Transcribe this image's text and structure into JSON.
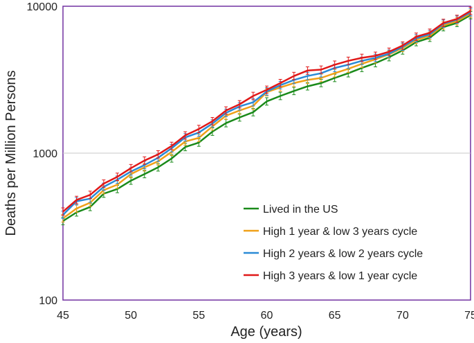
{
  "chart_data": {
    "type": "line",
    "title": "",
    "xlabel": "Age (years)",
    "ylabel": "Deaths per Million Persons",
    "xlim": [
      45,
      75
    ],
    "ylim": [
      100,
      10000
    ],
    "yscale": "log",
    "x_ticks": [
      45,
      50,
      55,
      60,
      65,
      70,
      75
    ],
    "x_tick_labels": [
      "45",
      "50",
      "55",
      "60",
      "65",
      "70",
      "75"
    ],
    "y_ticks": [
      100,
      1000,
      10000
    ],
    "y_tick_labels": [
      "100",
      "1000",
      "10000"
    ],
    "gridlines_y": [
      1000
    ],
    "legend_position": "lower-right",
    "x": [
      45,
      46,
      47,
      48,
      49,
      50,
      51,
      52,
      53,
      54,
      55,
      56,
      57,
      58,
      59,
      60,
      61,
      62,
      63,
      64,
      65,
      66,
      67,
      68,
      69,
      70,
      71,
      72,
      73,
      74,
      75
    ],
    "series": [
      {
        "name": "Lived in the US",
        "color": "#1a8a1a",
        "values": [
          345,
          395,
          430,
          530,
          570,
          650,
          720,
          800,
          920,
          1100,
          1180,
          1400,
          1600,
          1750,
          1900,
          2250,
          2450,
          2650,
          2850,
          3000,
          3250,
          3500,
          3800,
          4100,
          4500,
          5000,
          5700,
          6100,
          7200,
          7700,
          8700
        ]
      },
      {
        "name": "High 1 year & low 3 years cycle",
        "color": "#f0a018",
        "values": [
          360,
          420,
          460,
          560,
          610,
          720,
          800,
          880,
          1020,
          1200,
          1270,
          1520,
          1800,
          1950,
          2100,
          2600,
          2800,
          3000,
          3150,
          3250,
          3500,
          3750,
          4050,
          4350,
          4700,
          5200,
          5900,
          6300,
          7400,
          7900,
          8900
        ]
      },
      {
        "name": "High 2 years & low 2 years cycle",
        "color": "#2a8ad6",
        "values": [
          380,
          470,
          490,
          590,
          660,
          750,
          830,
          930,
          1080,
          1280,
          1380,
          1590,
          1880,
          2080,
          2220,
          2630,
          2900,
          3150,
          3350,
          3500,
          3800,
          4000,
          4250,
          4450,
          4750,
          5300,
          6050,
          6450,
          7600,
          8100,
          9100
        ]
      },
      {
        "name": "High 3 years & low 1 year cycle",
        "color": "#e01818",
        "values": [
          400,
          480,
          520,
          620,
          690,
          790,
          890,
          980,
          1120,
          1320,
          1460,
          1650,
          1950,
          2150,
          2450,
          2700,
          3000,
          3350,
          3650,
          3700,
          4000,
          4250,
          4450,
          4600,
          4900,
          5400,
          6200,
          6600,
          7700,
          8200,
          9300
        ]
      }
    ]
  }
}
